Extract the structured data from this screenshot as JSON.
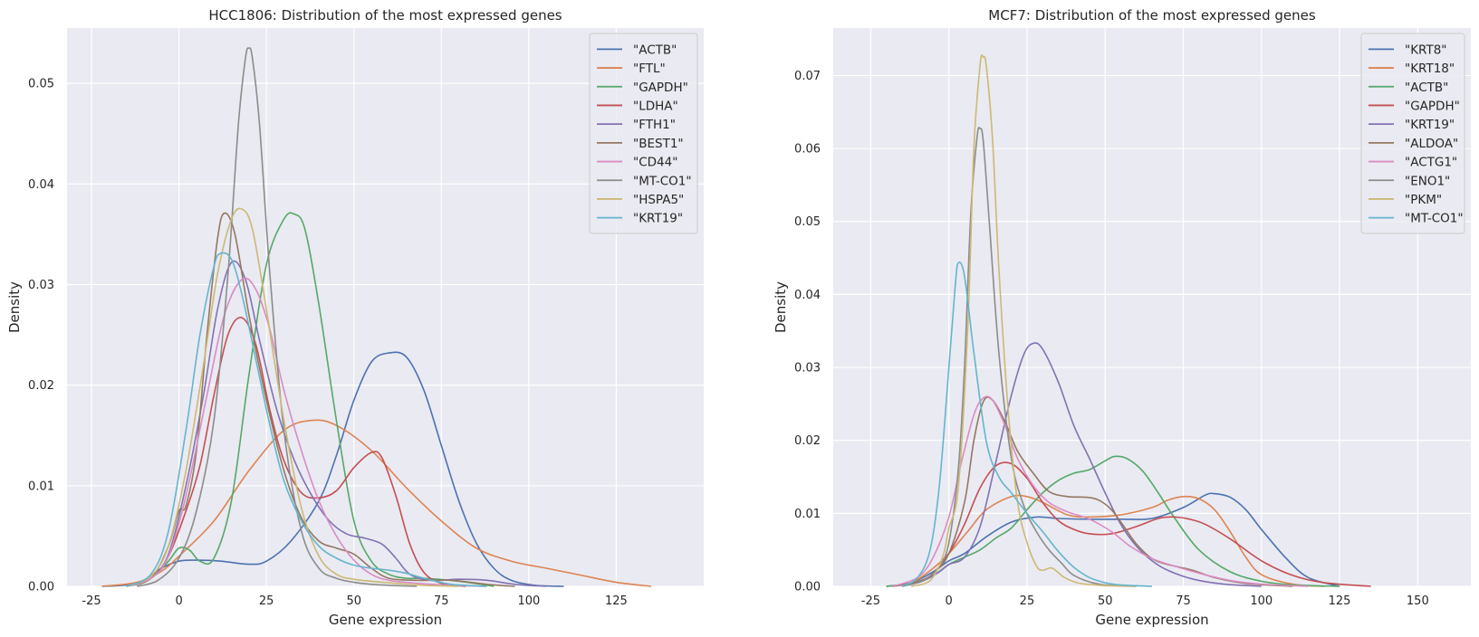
{
  "colors": {
    "plot_bg": "#EAEAF2",
    "grid": "#FFFFFF",
    "legend_border": "#CCCCCC",
    "palette": [
      "#4C72B0",
      "#DD8452",
      "#55A868",
      "#C44E52",
      "#8172B3",
      "#937860",
      "#DA8BC3",
      "#8C8C8C",
      "#CCB974",
      "#64B5CD"
    ]
  },
  "chart_data": [
    {
      "type": "line",
      "subtype": "kde-density",
      "title": "HCC1806: Distribution of the most expressed genes",
      "xlabel": "Gene expression",
      "ylabel": "Density",
      "xlim": [
        -32,
        150
      ],
      "ylim": [
        0,
        0.0555
      ],
      "xticks": [
        -25,
        0,
        25,
        50,
        75,
        100,
        125
      ],
      "yticks": [
        0.0,
        0.01,
        0.02,
        0.03,
        0.04,
        0.05
      ],
      "ytick_labels": [
        "0.00",
        "0.01",
        "0.02",
        "0.03",
        "0.04",
        "0.05"
      ],
      "grid": true,
      "legend_position": "top-right",
      "series": [
        {
          "name": "\"ACTB\"",
          "x": [
            -22,
            -12,
            -5,
            0,
            5,
            12,
            20,
            25,
            32,
            40,
            45,
            50,
            55,
            60,
            65,
            70,
            75,
            80,
            85,
            90,
            95,
            102,
            110
          ],
          "y": [
            0,
            0.0003,
            0.0018,
            0.0025,
            0.0026,
            0.0025,
            0.0022,
            0.0025,
            0.0045,
            0.0085,
            0.013,
            0.0185,
            0.0223,
            0.0232,
            0.0228,
            0.0195,
            0.014,
            0.0085,
            0.0043,
            0.0018,
            0.0006,
            0.0001,
            0
          ]
        },
        {
          "name": "\"FTL\"",
          "x": [
            -22,
            -12,
            -5,
            0,
            10,
            20,
            30,
            38,
            45,
            55,
            65,
            75,
            85,
            95,
            105,
            115,
            125,
            135
          ],
          "y": [
            0,
            0.0004,
            0.0015,
            0.003,
            0.0065,
            0.0115,
            0.0155,
            0.0165,
            0.016,
            0.0135,
            0.0098,
            0.0065,
            0.0038,
            0.0025,
            0.0018,
            0.0011,
            0.0004,
            0
          ]
        },
        {
          "name": "\"GAPDH\"",
          "x": [
            -15,
            -8,
            -3,
            0,
            3,
            6,
            10,
            15,
            20,
            25,
            30,
            33,
            36,
            40,
            45,
            50,
            55,
            60,
            65,
            70,
            80,
            90
          ],
          "y": [
            0,
            0.0008,
            0.0025,
            0.0038,
            0.0036,
            0.0025,
            0.0028,
            0.0085,
            0.021,
            0.032,
            0.0365,
            0.037,
            0.0355,
            0.028,
            0.0165,
            0.0065,
            0.0025,
            0.0012,
            0.0008,
            0.0008,
            0.0005,
            0
          ]
        },
        {
          "name": "\"LDHA\"",
          "x": [
            -15,
            -8,
            -3,
            2,
            6,
            10,
            14,
            18,
            22,
            26,
            30,
            35,
            40,
            45,
            50,
            55,
            58,
            62,
            66,
            70,
            75,
            82
          ],
          "y": [
            0,
            0.0008,
            0.003,
            0.0075,
            0.012,
            0.019,
            0.025,
            0.0267,
            0.024,
            0.0175,
            0.0125,
            0.0093,
            0.0088,
            0.0095,
            0.0118,
            0.0133,
            0.0128,
            0.009,
            0.0042,
            0.0014,
            0.0003,
            0
          ]
        },
        {
          "name": "\"FTH1\"",
          "x": [
            -15,
            -8,
            -3,
            2,
            7,
            11,
            15,
            19,
            23,
            28,
            33,
            38,
            43,
            48,
            53,
            58,
            62,
            66,
            72,
            80,
            88,
            96,
            105
          ],
          "y": [
            0,
            0.0008,
            0.0032,
            0.01,
            0.019,
            0.0275,
            0.0322,
            0.0305,
            0.0245,
            0.0175,
            0.0125,
            0.009,
            0.0065,
            0.0052,
            0.0048,
            0.0042,
            0.0028,
            0.0012,
            0.0006,
            0.0007,
            0.0006,
            0.0002,
            0
          ]
        },
        {
          "name": "\"BEST1\"",
          "x": [
            -15,
            -8,
            -3,
            0,
            2,
            5,
            8,
            11,
            13,
            16,
            20,
            25,
            30,
            35,
            40,
            45,
            50,
            55,
            60,
            68,
            78,
            88,
            96
          ],
          "y": [
            0,
            0.0008,
            0.004,
            0.0075,
            0.008,
            0.0135,
            0.025,
            0.0345,
            0.0371,
            0.035,
            0.027,
            0.0185,
            0.0115,
            0.0068,
            0.0045,
            0.0038,
            0.0032,
            0.0018,
            0.0008,
            0.0006,
            0.0006,
            0.0002,
            0
          ]
        },
        {
          "name": "\"CD44\"",
          "x": [
            -15,
            -8,
            -3,
            2,
            8,
            13,
            18,
            22,
            26,
            30,
            35,
            40,
            45,
            50,
            55,
            60,
            68,
            78,
            88
          ],
          "y": [
            0,
            0.0008,
            0.003,
            0.009,
            0.019,
            0.027,
            0.0305,
            0.0295,
            0.0255,
            0.0195,
            0.0135,
            0.0085,
            0.005,
            0.0026,
            0.0012,
            0.0006,
            0.0003,
            0.0001,
            0
          ]
        },
        {
          "name": "\"MT-CO1\"",
          "x": [
            -12,
            -6,
            0,
            5,
            10,
            14,
            17,
            19,
            20,
            21,
            23,
            26,
            30,
            35,
            40,
            45,
            50,
            55,
            60,
            68
          ],
          "y": [
            0,
            0.0006,
            0.0028,
            0.0075,
            0.0165,
            0.031,
            0.046,
            0.0525,
            0.0535,
            0.0525,
            0.046,
            0.031,
            0.0155,
            0.0055,
            0.0018,
            0.0008,
            0.0004,
            0.0002,
            0.0001,
            0
          ]
        },
        {
          "name": "\"HSPA5\"",
          "x": [
            -15,
            -8,
            -3,
            2,
            7,
            11,
            15,
            18,
            21,
            25,
            30,
            35,
            40,
            45,
            50,
            55,
            62,
            70,
            80
          ],
          "y": [
            0,
            0.001,
            0.004,
            0.0115,
            0.022,
            0.031,
            0.0365,
            0.0375,
            0.0355,
            0.0275,
            0.0165,
            0.0078,
            0.003,
            0.0012,
            0.0007,
            0.0005,
            0.0003,
            0.0001,
            0
          ]
        },
        {
          "name": "\"KRT19\"",
          "x": [
            -15,
            -8,
            -3,
            2,
            6,
            10,
            12,
            15,
            18,
            22,
            26,
            30,
            35,
            40,
            45,
            50,
            55,
            60,
            65,
            70,
            78,
            88
          ],
          "y": [
            0,
            0.0012,
            0.0055,
            0.0155,
            0.025,
            0.0318,
            0.0331,
            0.0325,
            0.029,
            0.0225,
            0.016,
            0.0105,
            0.0065,
            0.004,
            0.0028,
            0.0021,
            0.0018,
            0.0016,
            0.0013,
            0.0008,
            0.0002,
            0
          ]
        }
      ]
    },
    {
      "type": "line",
      "subtype": "kde-density",
      "title": "MCF7: Distribution of the most expressed genes",
      "xlabel": "Gene expression",
      "ylabel": "Density",
      "xlim": [
        -37,
        167
      ],
      "ylim": [
        0,
        0.0765
      ],
      "xticks": [
        -25,
        0,
        25,
        50,
        75,
        100,
        125,
        150
      ],
      "yticks": [
        0.0,
        0.01,
        0.02,
        0.03,
        0.04,
        0.05,
        0.06,
        0.07
      ],
      "ytick_labels": [
        "0.00",
        "0.01",
        "0.02",
        "0.03",
        "0.04",
        "0.05",
        "0.06",
        "0.07"
      ],
      "grid": true,
      "legend_position": "top-right",
      "series": [
        {
          "name": "\"KRT8\"",
          "x": [
            -20,
            -12,
            -5,
            0,
            5,
            12,
            20,
            28,
            35,
            45,
            55,
            65,
            75,
            82,
            85,
            90,
            95,
            100,
            108,
            115,
            125
          ],
          "y": [
            0,
            0.0005,
            0.002,
            0.0035,
            0.0045,
            0.0068,
            0.0088,
            0.0095,
            0.0093,
            0.0092,
            0.0092,
            0.0093,
            0.0108,
            0.0125,
            0.0127,
            0.0122,
            0.0105,
            0.0078,
            0.0038,
            0.0012,
            0
          ]
        },
        {
          "name": "\"KRT18\"",
          "x": [
            -20,
            -12,
            -5,
            0,
            6,
            12,
            20,
            25,
            30,
            38,
            45,
            55,
            65,
            70,
            75,
            80,
            85,
            90,
            95,
            100,
            110,
            120
          ],
          "y": [
            0,
            0.0005,
            0.0025,
            0.0045,
            0.0075,
            0.0105,
            0.0123,
            0.0123,
            0.0115,
            0.0098,
            0.0095,
            0.0098,
            0.0108,
            0.0118,
            0.0123,
            0.012,
            0.0105,
            0.0075,
            0.004,
            0.0016,
            0.0003,
            0
          ]
        },
        {
          "name": "\"ACTB\"",
          "x": [
            -20,
            -12,
            -5,
            0,
            5,
            10,
            15,
            20,
            25,
            30,
            35,
            40,
            45,
            50,
            53,
            57,
            62,
            67,
            72,
            80,
            90,
            100,
            110,
            125
          ],
          "y": [
            0,
            0.0004,
            0.0015,
            0.003,
            0.004,
            0.005,
            0.0066,
            0.008,
            0.0105,
            0.0128,
            0.0145,
            0.0155,
            0.016,
            0.0172,
            0.0178,
            0.0175,
            0.0158,
            0.0128,
            0.0095,
            0.005,
            0.002,
            0.0007,
            0.0002,
            0
          ]
        },
        {
          "name": "\"GAPDH\"",
          "x": [
            -18,
            -10,
            -5,
            0,
            5,
            10,
            15,
            20,
            25,
            30,
            35,
            40,
            45,
            52,
            60,
            67,
            72,
            77,
            82,
            90,
            100,
            110,
            120,
            135
          ],
          "y": [
            0,
            0.0006,
            0.0018,
            0.0045,
            0.0085,
            0.0135,
            0.0165,
            0.0168,
            0.0148,
            0.0115,
            0.009,
            0.0078,
            0.0072,
            0.0072,
            0.0082,
            0.0093,
            0.0095,
            0.0092,
            0.0085,
            0.0065,
            0.0035,
            0.0015,
            0.0005,
            0
          ]
        },
        {
          "name": "\"KRT19\"",
          "x": [
            -15,
            -8,
            -3,
            0,
            5,
            10,
            15,
            20,
            24,
            27,
            30,
            35,
            40,
            45,
            50,
            55,
            60,
            65,
            70,
            78,
            88,
            100
          ],
          "y": [
            0,
            0.0008,
            0.002,
            0.003,
            0.004,
            0.0082,
            0.017,
            0.0262,
            0.0318,
            0.0333,
            0.0325,
            0.028,
            0.022,
            0.0175,
            0.0128,
            0.0085,
            0.0055,
            0.0035,
            0.0022,
            0.001,
            0.0003,
            0
          ]
        },
        {
          "name": "\"ALDOA\"",
          "x": [
            -18,
            -10,
            -5,
            0,
            5,
            8,
            11,
            14,
            18,
            22,
            27,
            32,
            38,
            44,
            48,
            52,
            56,
            60,
            65,
            70,
            78,
            85,
            95,
            110
          ],
          "y": [
            0,
            0.0006,
            0.0018,
            0.0045,
            0.0115,
            0.02,
            0.0253,
            0.0255,
            0.0225,
            0.0185,
            0.0155,
            0.013,
            0.0123,
            0.0122,
            0.0118,
            0.0105,
            0.0082,
            0.0058,
            0.0038,
            0.003,
            0.0022,
            0.0012,
            0.0004,
            0
          ]
        },
        {
          "name": "\"ACTG1\"",
          "x": [
            -18,
            -10,
            -5,
            0,
            4,
            8,
            11,
            14,
            18,
            22,
            27,
            32,
            38,
            45,
            52,
            58,
            65,
            72,
            80,
            90,
            100,
            115
          ],
          "y": [
            0,
            0.0012,
            0.004,
            0.0095,
            0.017,
            0.0235,
            0.0258,
            0.0255,
            0.022,
            0.0175,
            0.0138,
            0.0115,
            0.0102,
            0.0092,
            0.0075,
            0.0055,
            0.0038,
            0.0028,
            0.0018,
            0.0008,
            0.0003,
            0
          ]
        },
        {
          "name": "\"ENO1\"",
          "x": [
            -15,
            -8,
            -3,
            0,
            3,
            5,
            7,
            9,
            10,
            11,
            13,
            16,
            20,
            24,
            28,
            32,
            36,
            40,
            48,
            60
          ],
          "y": [
            0,
            0.0008,
            0.0028,
            0.006,
            0.016,
            0.03,
            0.051,
            0.0615,
            0.0627,
            0.061,
            0.0495,
            0.032,
            0.0175,
            0.011,
            0.0075,
            0.005,
            0.0032,
            0.0015,
            0.0003,
            0
          ]
        },
        {
          "name": "\"PKM\"",
          "x": [
            -12,
            -6,
            -2,
            0,
            3,
            6,
            8,
            10,
            11,
            12,
            14,
            16,
            19,
            22,
            25,
            28,
            30,
            33,
            37,
            42,
            50,
            60
          ],
          "y": [
            0,
            0.0008,
            0.004,
            0.008,
            0.0135,
            0.035,
            0.06,
            0.0715,
            0.0725,
            0.0712,
            0.061,
            0.0435,
            0.024,
            0.0115,
            0.006,
            0.0028,
            0.0022,
            0.0025,
            0.0012,
            0.0004,
            0.0001,
            0
          ]
        },
        {
          "name": "\"MT-CO1\"",
          "x": [
            -15,
            -10,
            -6,
            -3,
            0,
            2,
            3,
            5,
            8,
            12,
            16,
            20,
            25,
            30,
            35,
            40,
            45,
            50,
            55,
            65
          ],
          "y": [
            0,
            0.0012,
            0.005,
            0.014,
            0.03,
            0.041,
            0.0443,
            0.0425,
            0.032,
            0.0198,
            0.015,
            0.0128,
            0.01,
            0.0075,
            0.0048,
            0.0026,
            0.0012,
            0.0005,
            0.0002,
            0
          ]
        }
      ]
    }
  ]
}
